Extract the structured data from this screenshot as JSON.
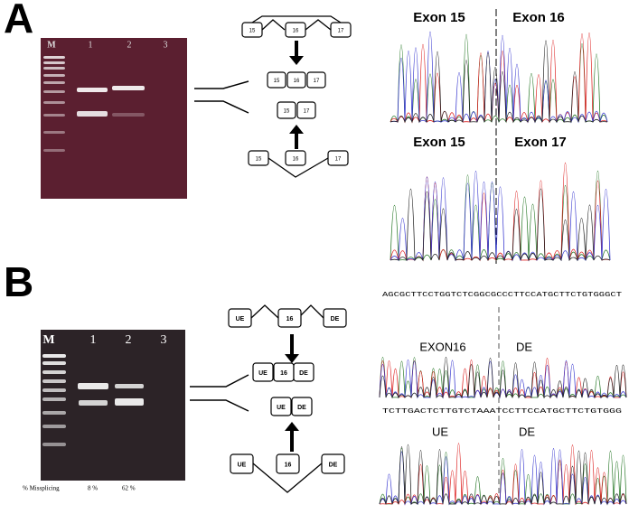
{
  "panel_a": {
    "label": "A",
    "gel": {
      "lanes": [
        "M",
        "1",
        "2",
        "3"
      ]
    },
    "diagram": {
      "top": [
        "15",
        "16",
        "17"
      ],
      "included": [
        "15",
        "16",
        "17"
      ],
      "skipped": [
        "15",
        "17"
      ],
      "bottom": [
        "15",
        "16",
        "17"
      ]
    },
    "chromatograms": [
      {
        "left": "Exon 15",
        "right": "Exon 16"
      },
      {
        "left": "Exon 15",
        "right": "Exon 17"
      }
    ]
  },
  "panel_b": {
    "label": "B",
    "gel": {
      "lanes": [
        "M",
        "1",
        "2",
        "3"
      ],
      "missplicing_label": "% Missplicing",
      "missplicing_values": [
        "8 %",
        "62 %"
      ]
    },
    "diagram": {
      "top": [
        "UE",
        "16",
        "DE"
      ],
      "included": [
        "UE",
        "16",
        "DE"
      ],
      "skipped": [
        "UE",
        "DE"
      ],
      "bottom": [
        "UE",
        "16",
        "DE"
      ]
    },
    "chromatograms": [
      {
        "sequence": "AGCGCTTCCTGGTCTCGGCGCCCTTCCATGCTTCTGTGGGCT",
        "left": "EXON16",
        "right": "DE"
      },
      {
        "sequence": "TCTTGACTCTTGTCTAAATCCTTCCATGCTTCTGTGGG",
        "left": "UE",
        "right": "DE"
      }
    ]
  }
}
